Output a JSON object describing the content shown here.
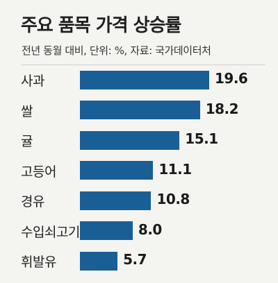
{
  "chart_data": {
    "type": "bar",
    "orientation": "horizontal",
    "title": "주요 품목 가격 상승률",
    "subtitle": "전년 동월 대비, 단위: %, 자료: 국가데이터처",
    "categories": [
      "사과",
      "쌀",
      "귤",
      "고등어",
      "경유",
      "수입쇠고기",
      "휘발유"
    ],
    "values": [
      19.6,
      18.2,
      15.1,
      11.1,
      10.8,
      8.0,
      5.7
    ],
    "value_labels": [
      "19.6",
      "18.2",
      "15.1",
      "11.1",
      "10.8",
      "8.0",
      "5.7"
    ],
    "bar_color": "#1a5e96",
    "grid": false,
    "legend": "none"
  }
}
